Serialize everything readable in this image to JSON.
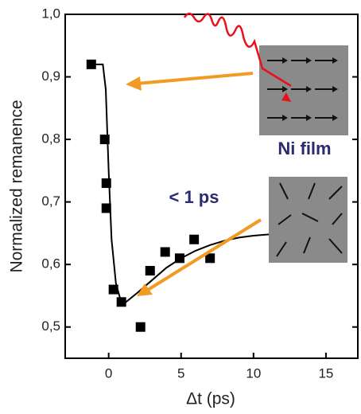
{
  "chart_data": {
    "type": "scatter",
    "xlabel": "Δt (ps)",
    "ylabel": "Normalized remanence",
    "x": [
      -1.2,
      -0.27,
      -0.16,
      -0.16,
      0.33,
      0.88,
      2.2,
      2.86,
      3.9,
      4.9,
      5.9,
      7.0
    ],
    "values": [
      0.92,
      0.8,
      0.73,
      0.69,
      0.56,
      0.54,
      0.5,
      0.59,
      0.62,
      0.61,
      0.64,
      0.61
    ],
    "color": "#000000",
    "fit": {
      "x": [
        -1.0,
        -0.4,
        -0.2,
        0,
        0.2,
        0.5,
        0.8,
        1.2,
        2,
        3,
        4,
        5,
        6,
        7,
        8,
        9,
        10,
        11,
        12
      ],
      "values": [
        0.92,
        0.92,
        0.88,
        0.75,
        0.64,
        0.57,
        0.545,
        0.54,
        0.555,
        0.575,
        0.595,
        0.61,
        0.622,
        0.631,
        0.638,
        0.643,
        0.646,
        0.648,
        0.649
      ],
      "color": "#000000"
    },
    "xlim": [
      -3,
      17.2
    ],
    "ylim": [
      0.45,
      1.0
    ],
    "xticks": [
      0,
      5,
      10,
      15
    ],
    "yticks": [
      {
        "value": 0.5,
        "label": "0,5"
      },
      {
        "value": 0.6,
        "label": "0,6"
      },
      {
        "value": 0.7,
        "label": "0,7"
      },
      {
        "value": 0.8,
        "label": "0,8"
      },
      {
        "value": 0.9,
        "label": "0,9"
      },
      {
        "value": 1.0,
        "label": "1,0"
      }
    ],
    "annotations": [
      "Ni film",
      "< 1 ps"
    ]
  }
}
